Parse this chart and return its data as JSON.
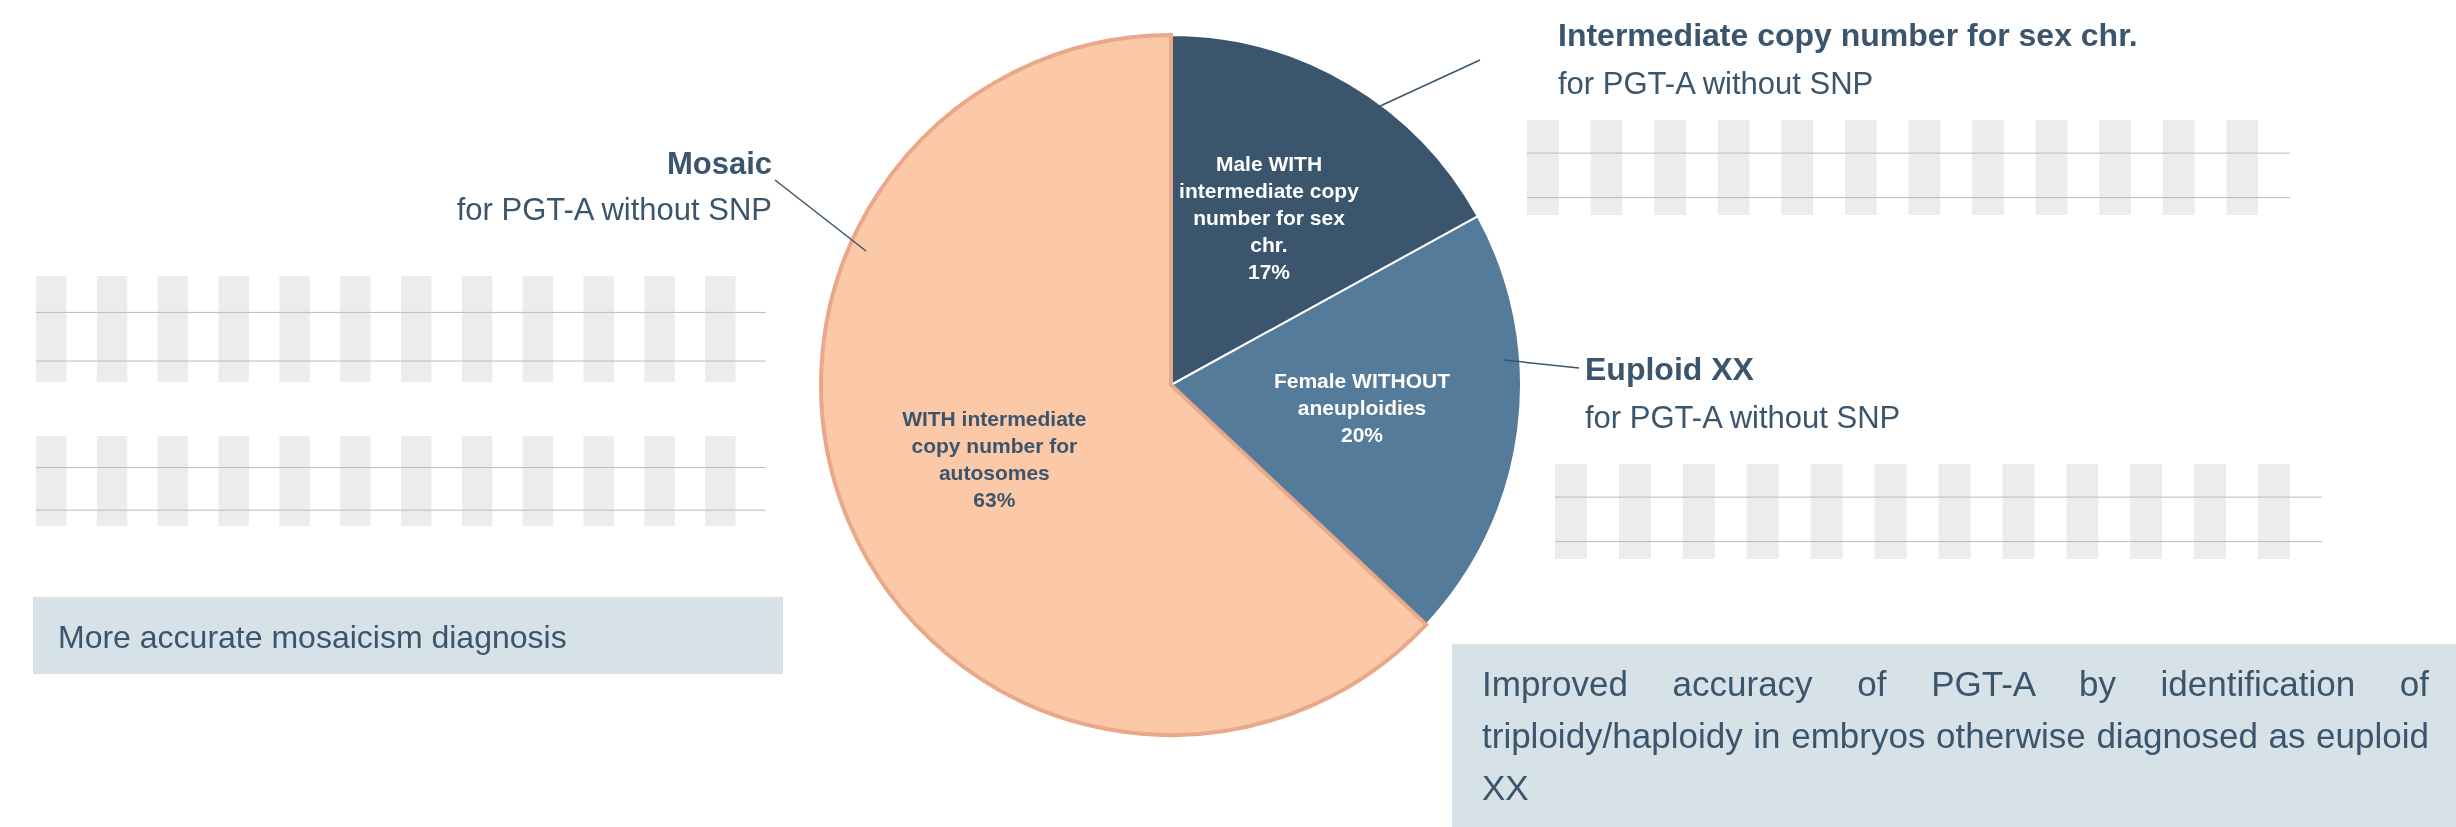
{
  "chart_data": {
    "type": "pie",
    "categories": [
      "Male WITH intermediate copy number for sex chr.",
      "Female WITHOUT aneuploidies",
      "WITH intermediate copy number for autosomes"
    ],
    "values": [
      17,
      20,
      63
    ],
    "colors": [
      "#3b556c",
      "#557b9a",
      "#fbc8a8"
    ],
    "value_labels": [
      "17%",
      "20%",
      "63%"
    ],
    "annotations": [
      "Mosaic",
      "for PGT-A without SNP",
      "Intermediate copy number for sex chr.",
      "for PGT-A without SNP",
      "Euploid XX",
      "for PGT-A without SNP",
      "More accurate mosaicism diagnosis",
      "Improved accuracy of PGT-A by identification of triploidy/haploidy in embryos otherwise diagnosed as euploid XX"
    ]
  }
}
